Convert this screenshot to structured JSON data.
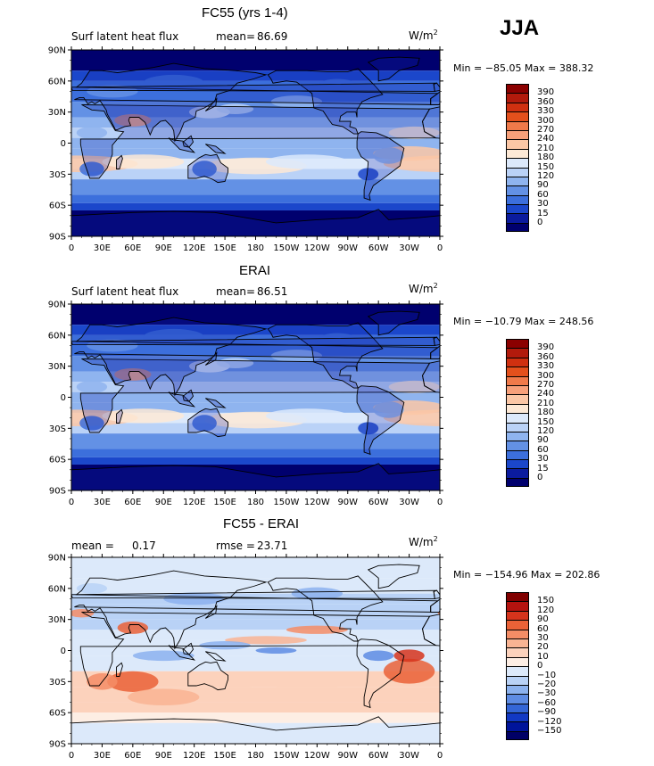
{
  "season": "JJA",
  "units": {
    "base": "W/m",
    "exp": "2"
  },
  "panels": [
    {
      "id": "model",
      "title": "FC55 (yrs 1-4)",
      "left_label": "Surf latent heat flux",
      "stat1_label": "mean=",
      "stat1_value": "86.69",
      "stat2_label": "",
      "stat2_value": "",
      "min_max": "Min = −85.05 Max = 388.32",
      "palette": "seq",
      "colorbar_labels": [
        "390",
        "360",
        "330",
        "300",
        "270",
        "240",
        "210",
        "180",
        "150",
        "120",
        "90",
        "60",
        "30",
        "15",
        "0"
      ]
    },
    {
      "id": "obs",
      "title": "ERAI",
      "left_label": "Surf latent heat flux",
      "stat1_label": "mean=",
      "stat1_value": "86.51",
      "stat2_label": "",
      "stat2_value": "",
      "min_max": "Min = −10.79 Max = 248.56",
      "palette": "seq",
      "colorbar_labels": [
        "390",
        "360",
        "330",
        "300",
        "270",
        "240",
        "210",
        "180",
        "150",
        "120",
        "90",
        "60",
        "30",
        "15",
        "0"
      ]
    },
    {
      "id": "diff",
      "title": "FC55 - ERAI",
      "left_label": "mean =",
      "stat1_label": "",
      "stat1_value": "0.17",
      "stat2_label": "rmse =",
      "stat2_value": "23.71",
      "min_max": "Min = −154.96 Max = 202.86",
      "palette": "div",
      "colorbar_labels": [
        "150",
        "120",
        "90",
        "60",
        "30",
        "20",
        "10",
        "0",
        "−10",
        "−20",
        "−30",
        "−60",
        "−90",
        "−120",
        "−150"
      ]
    }
  ],
  "colors": {
    "seq": [
      "#8b0000",
      "#b21a0c",
      "#d03010",
      "#e4501c",
      "#f07a4a",
      "#f7a07a",
      "#fbc7a6",
      "#fde9d6",
      "#dce9fb",
      "#bad2f7",
      "#8fb4ef",
      "#6391e5",
      "#3c6fdc",
      "#1b47cb",
      "#0b1b9e",
      "#00006e"
    ],
    "div": [
      "#800000",
      "#b5130f",
      "#d6341c",
      "#ea6237",
      "#f48d66",
      "#f9b493",
      "#fcd2bc",
      "#fdeee4",
      "#dce9fa",
      "#b9d2f6",
      "#8cb2ee",
      "#5e8ce3",
      "#3466d6",
      "#1239c4",
      "#00149b",
      "#000066"
    ]
  },
  "lat_labels": [
    "90N",
    "60N",
    "30N",
    "0",
    "30S",
    "60S",
    "90S"
  ],
  "lon_labels": [
    "0",
    "30E",
    "60E",
    "90E",
    "120E",
    "150E",
    "180",
    "150W",
    "120W",
    "90W",
    "60W",
    "30W",
    "0"
  ]
}
